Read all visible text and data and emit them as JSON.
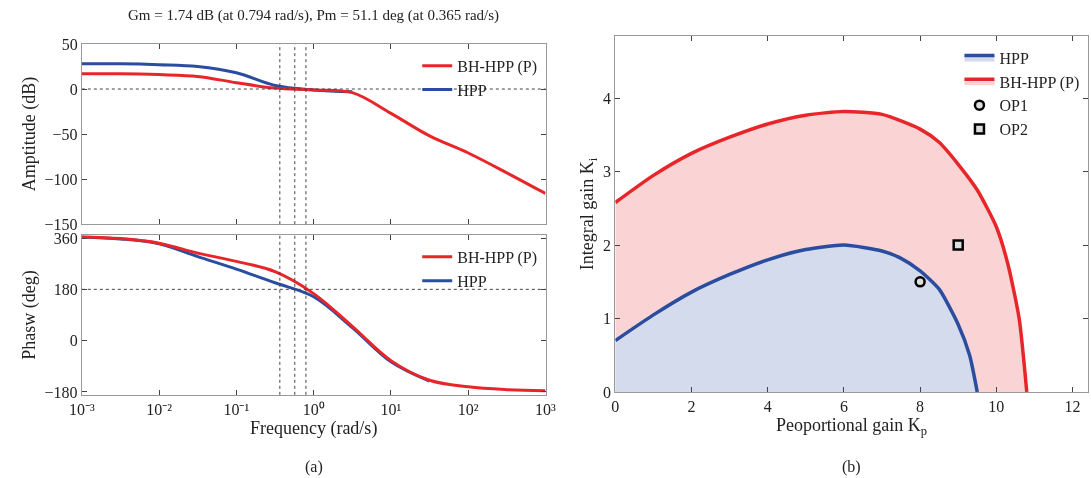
{
  "chart_data": [
    {
      "type": "line",
      "title": "Gm = 1.74 dB (at 0.794 rad/s), Pm = 51.1 deg (at 0.365 rad/s)",
      "ylabel": "Amptitude (dB)",
      "log": "x",
      "tick_labels": "y",
      "legend": "top right",
      "line_style": "solid",
      "x": [
        0.001,
        0.00316,
        0.01,
        0.0316,
        0.1,
        0.316,
        1,
        3.16,
        10,
        31.6,
        100,
        316,
        1000
      ],
      "series": [
        {
          "name": "BH-HPP (P)",
          "color": "#e8262a",
          "values": [
            17,
            17,
            16,
            14,
            7,
            1,
            -1,
            -4,
            -27,
            -52,
            -71,
            -93,
            -116
          ]
        },
        {
          "name": "HPP",
          "color": "#2a4da0",
          "values": [
            28,
            28,
            27,
            25,
            18,
            4,
            -1,
            -3,
            null,
            null,
            null,
            null,
            null
          ]
        }
      ],
      "xlim": [
        0.001,
        1000
      ],
      "xticks": [
        {
          "value": 0.001,
          "label": null
        },
        {
          "value": 0.01,
          "label": null
        },
        {
          "value": 0.1,
          "label": null
        },
        {
          "value": 1,
          "label": null
        },
        {
          "value": 10,
          "label": null
        },
        {
          "value": 100,
          "label": null
        },
        {
          "value": 1000,
          "label": null
        }
      ],
      "ylim": [
        -150,
        50
      ],
      "yticks": [
        -150,
        -100,
        -50,
        0,
        50
      ],
      "ref_lines": [
        {
          "axis": "y",
          "value": 0,
          "line_style": "dotted",
          "color": "#444444"
        },
        {
          "axis": "x",
          "value": 0.365,
          "line_style": "dotted",
          "color": "#444444"
        },
        {
          "axis": "x",
          "value": 0.57,
          "line_style": "dotted",
          "color": "#444444"
        },
        {
          "axis": "x",
          "value": 0.794,
          "line_style": "dotted",
          "color": "#444444"
        }
      ]
    },
    {
      "type": "line",
      "xlabel": "Frequency (rad/s)",
      "ylabel": "Phasw (deg)",
      "log": "x",
      "legend": "top right",
      "line_style": "solid",
      "x": [
        0.001,
        0.00316,
        0.01,
        0.0316,
        0.1,
        0.316,
        1,
        3.16,
        10,
        31.6,
        100,
        316,
        1000
      ],
      "series": [
        {
          "name": "BH-HPP (P)",
          "color": "#e8262a",
          "values": [
            364,
            358,
            342,
            307,
            278,
            242,
            165,
            50,
            -70,
            -139,
            -162,
            -172,
            -176
          ]
        },
        {
          "name": "HPP",
          "color": "#2a4da0",
          "values": [
            364,
            357,
            340,
            295,
            251,
            203,
            154,
            46,
            -74,
            -142,
            null,
            null,
            null
          ]
        }
      ],
      "xlim": [
        0.001,
        1000
      ],
      "xticks": [
        {
          "value": 0.001,
          "label": "10⁻³"
        },
        {
          "value": 0.01,
          "label": "10⁻²"
        },
        {
          "value": 0.1,
          "label": "10⁻¹"
        },
        {
          "value": 1,
          "label": "10⁰"
        },
        {
          "value": 10,
          "label": "10¹"
        },
        {
          "value": 100,
          "label": "10²"
        },
        {
          "value": 1000,
          "label": "10³"
        }
      ],
      "ylim": [
        -190,
        370
      ],
      "yticks": [
        -180,
        0,
        180,
        360
      ],
      "ref_lines": [
        {
          "axis": "y",
          "value": 180,
          "line_style": "dotted",
          "color": "#444444"
        },
        {
          "axis": "x",
          "value": 0.365,
          "line_style": "dotted",
          "color": "#444444"
        },
        {
          "axis": "x",
          "value": 0.57,
          "line_style": "dotted",
          "color": "#444444"
        },
        {
          "axis": "x",
          "value": 0.794,
          "line_style": "dotted",
          "color": "#444444"
        }
      ],
      "annotations": [
        "(a)"
      ]
    },
    {
      "type": "area",
      "xlabel": "Peoportional gain K$_{p}$",
      "ylabel": "Integral gain K$_{i}$",
      "legend": "top right",
      "series": [
        {
          "name": "HPP",
          "color": "#2a4da0",
          "x": [
            0,
            1,
            2,
            3,
            4,
            5,
            6,
            7,
            7.5,
            8,
            8.5,
            9,
            9.3,
            9.5
          ],
          "values": [
            0.7,
            1.05,
            1.36,
            1.6,
            1.8,
            1.94,
            2.0,
            1.92,
            1.82,
            1.65,
            1.4,
            0.92,
            0.5,
            0
          ]
        },
        {
          "name": "BH-HPP (P)",
          "color": "#e8262a",
          "x": [
            0,
            1,
            2,
            3,
            4,
            5,
            6,
            7,
            8,
            8.5,
            9,
            9.5,
            10,
            10.3,
            10.6,
            10.8
          ],
          "values": [
            2.58,
            2.95,
            3.25,
            3.47,
            3.65,
            3.77,
            3.82,
            3.78,
            3.58,
            3.4,
            3.1,
            2.75,
            2.25,
            1.75,
            1.0,
            0
          ]
        },
        {
          "name": "OP1",
          "type": "scatter",
          "marker": "circle",
          "color": "#000000",
          "x": [
            8
          ],
          "values": [
            1.5
          ]
        },
        {
          "name": "OP2",
          "type": "scatter",
          "marker": "square",
          "color": "#000000",
          "x": [
            9
          ],
          "values": [
            2
          ]
        }
      ],
      "xlim": [
        0,
        12.4
      ],
      "xticks": [
        0,
        2,
        4,
        6,
        8,
        10,
        12
      ],
      "ylim": [
        0,
        4.85
      ],
      "yticks": [
        0,
        1,
        2,
        3,
        4
      ],
      "annotations": [
        "(b)"
      ]
    }
  ]
}
